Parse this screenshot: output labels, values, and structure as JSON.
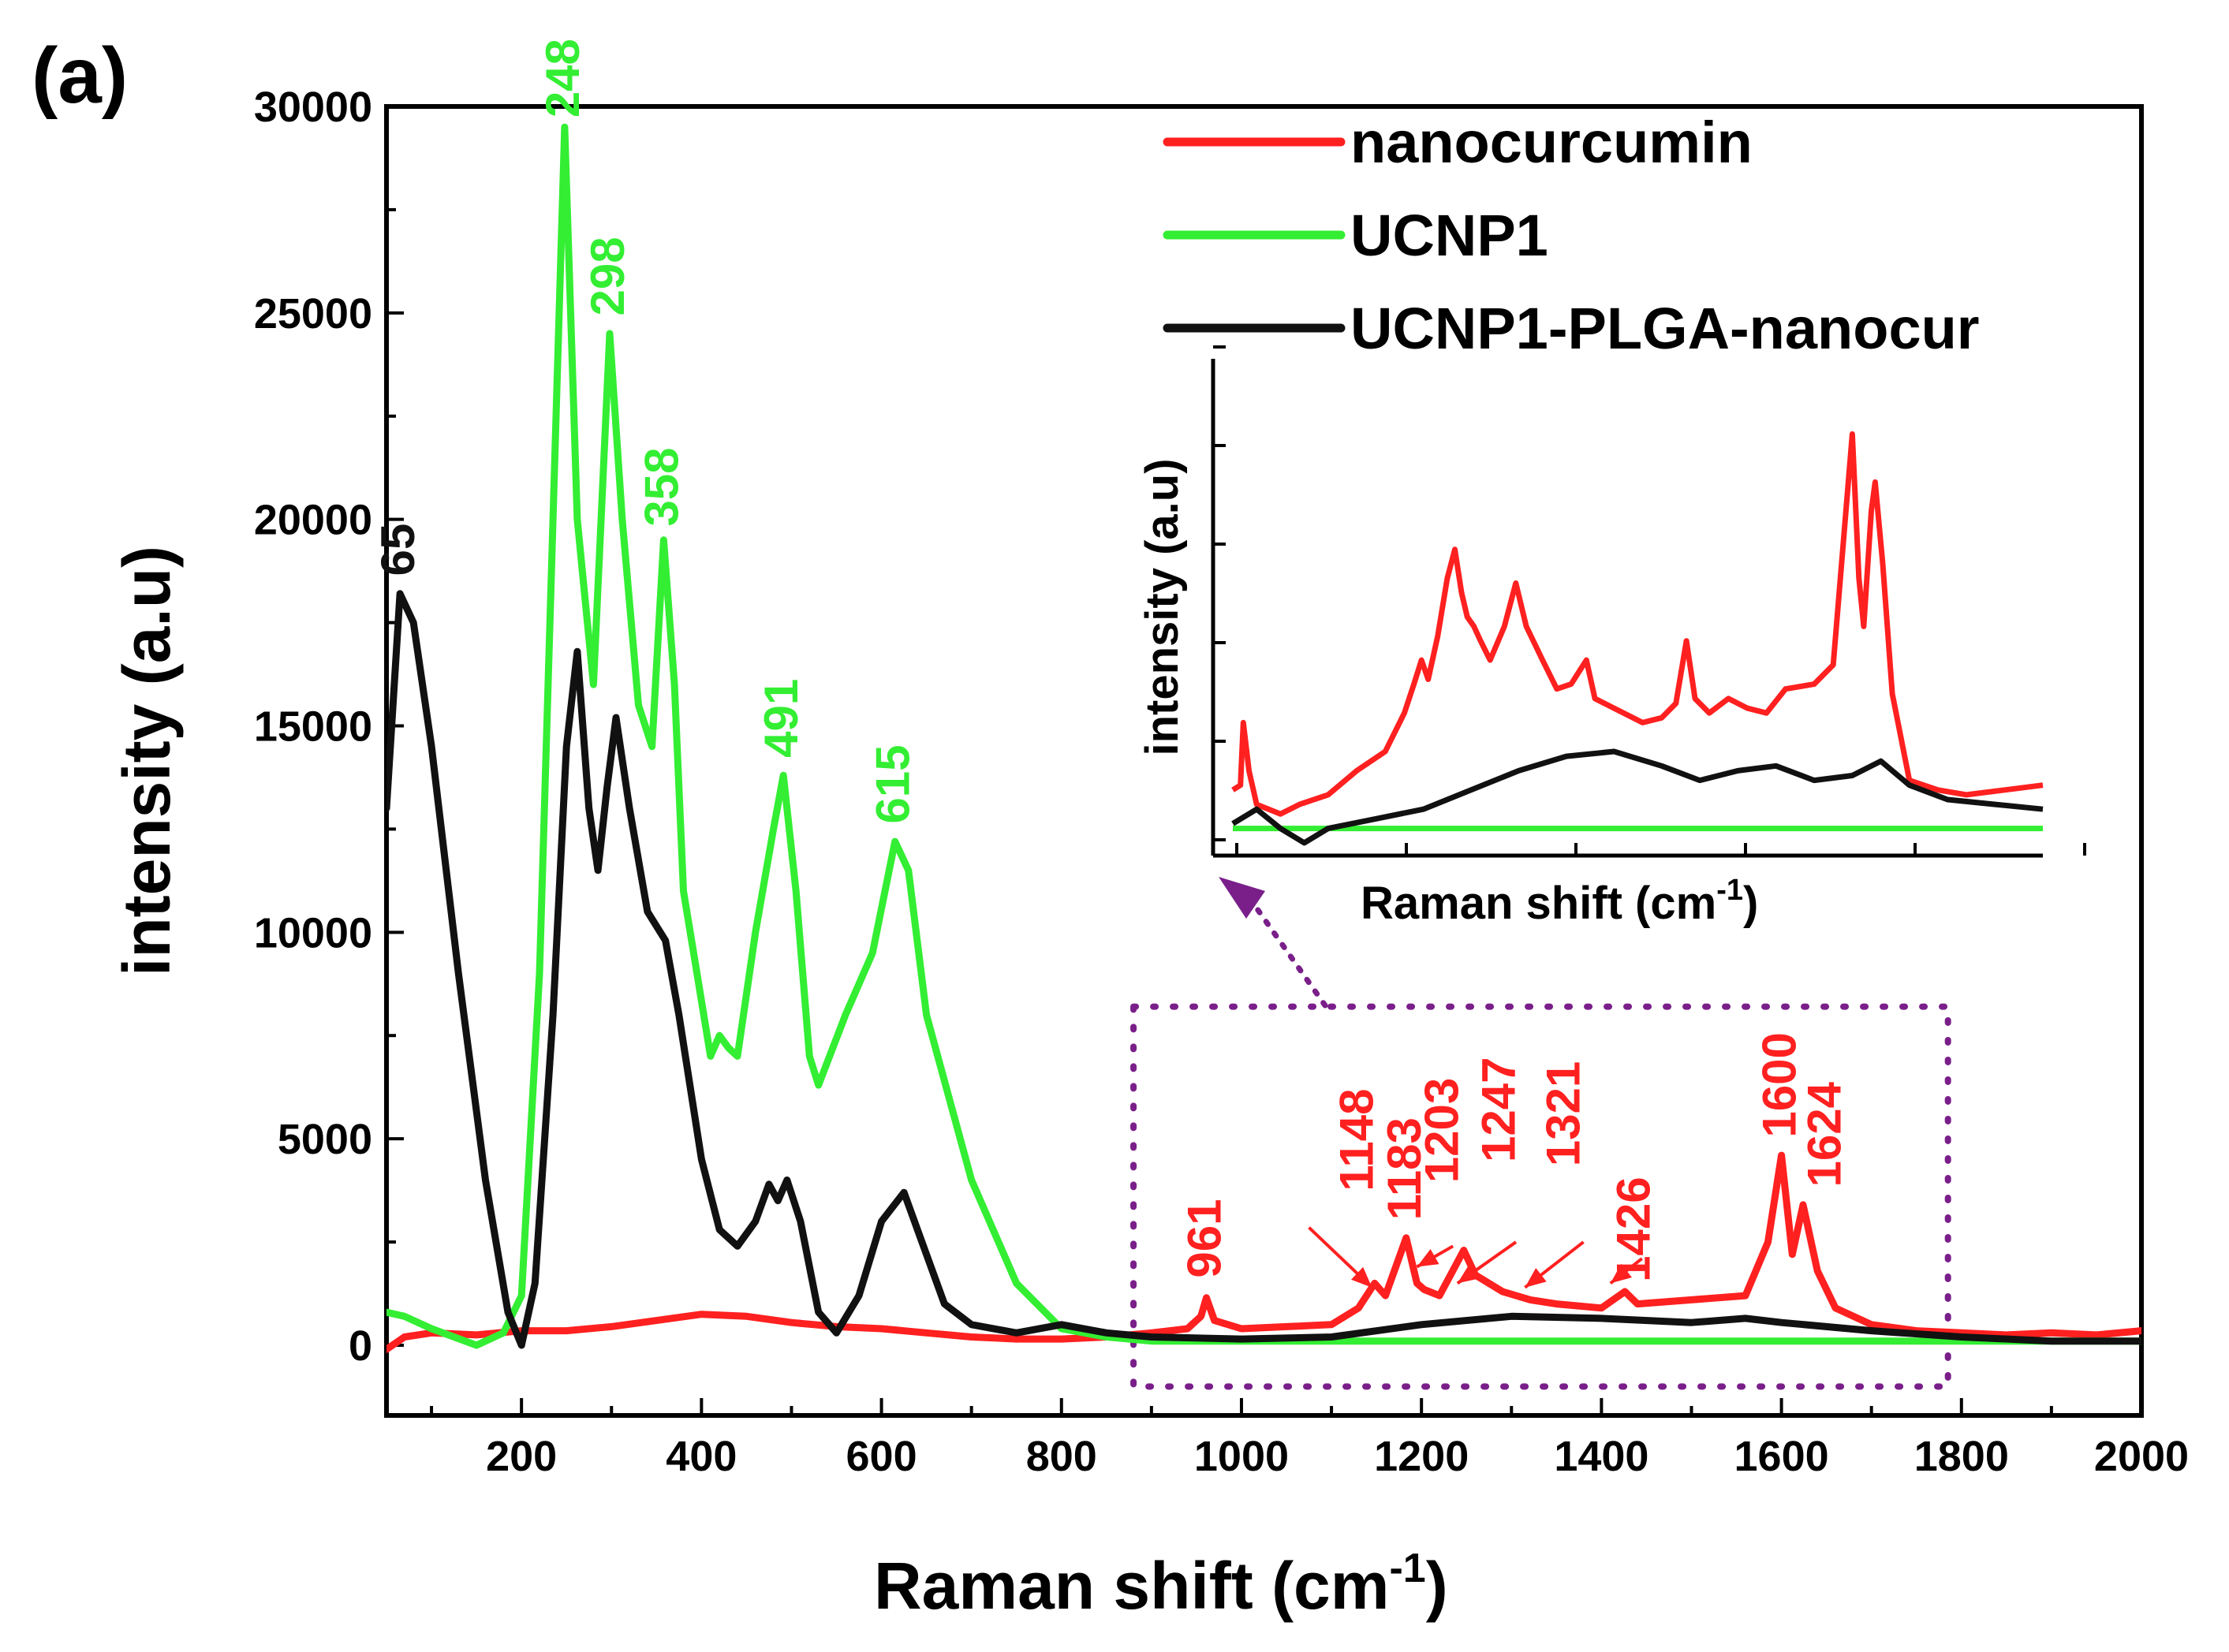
{
  "chart_data": {
    "type": "line",
    "panel_label": "(a)",
    "xlabel": "Raman shift (cm",
    "xlabel_sup": "-1",
    "xlabel_end": ")",
    "ylabel": "intensity (a.u)",
    "xlim": [
      50,
      2000
    ],
    "ylim": [
      -1700,
      30000
    ],
    "xticks": [
      200,
      400,
      600,
      800,
      1000,
      1200,
      1400,
      1600,
      1800,
      2000
    ],
    "yticks": [
      0,
      5000,
      10000,
      15000,
      20000,
      25000,
      30000
    ],
    "colors": {
      "red": "#ff2020",
      "green": "#33ee33",
      "black": "#111111",
      "purple": "#7a1f8a"
    },
    "series": [
      {
        "name": "nanocurcumin",
        "color": "#ff2020",
        "points": [
          [
            50,
            -100
          ],
          [
            70,
            200
          ],
          [
            100,
            300
          ],
          [
            150,
            250
          ],
          [
            200,
            350
          ],
          [
            250,
            350
          ],
          [
            300,
            450
          ],
          [
            350,
            600
          ],
          [
            400,
            750
          ],
          [
            450,
            700
          ],
          [
            500,
            550
          ],
          [
            550,
            450
          ],
          [
            600,
            400
          ],
          [
            650,
            300
          ],
          [
            700,
            200
          ],
          [
            750,
            150
          ],
          [
            800,
            150
          ],
          [
            850,
            200
          ],
          [
            900,
            300
          ],
          [
            940,
            400
          ],
          [
            955,
            700
          ],
          [
            961,
            1150
          ],
          [
            970,
            600
          ],
          [
            1000,
            400
          ],
          [
            1050,
            450
          ],
          [
            1100,
            500
          ],
          [
            1130,
            900
          ],
          [
            1148,
            1500
          ],
          [
            1160,
            1200
          ],
          [
            1183,
            2600
          ],
          [
            1195,
            1500
          ],
          [
            1203,
            1350
          ],
          [
            1220,
            1200
          ],
          [
            1247,
            2300
          ],
          [
            1260,
            1700
          ],
          [
            1290,
            1300
          ],
          [
            1321,
            1100
          ],
          [
            1350,
            1000
          ],
          [
            1400,
            900
          ],
          [
            1426,
            1300
          ],
          [
            1440,
            1000
          ],
          [
            1500,
            1100
          ],
          [
            1560,
            1200
          ],
          [
            1585,
            2500
          ],
          [
            1600,
            4600
          ],
          [
            1612,
            2200
          ],
          [
            1624,
            3400
          ],
          [
            1640,
            1800
          ],
          [
            1660,
            900
          ],
          [
            1700,
            500
          ],
          [
            1750,
            350
          ],
          [
            1800,
            300
          ],
          [
            1850,
            250
          ],
          [
            1900,
            300
          ],
          [
            1950,
            250
          ],
          [
            2000,
            350
          ]
        ]
      },
      {
        "name": "UCNP1",
        "color": "#33ee33",
        "points": [
          [
            50,
            800
          ],
          [
            70,
            700
          ],
          [
            100,
            400
          ],
          [
            150,
            0
          ],
          [
            180,
            300
          ],
          [
            200,
            1200
          ],
          [
            220,
            9000
          ],
          [
            235,
            20000
          ],
          [
            248,
            29500
          ],
          [
            262,
            20000
          ],
          [
            280,
            16000
          ],
          [
            298,
            24500
          ],
          [
            312,
            20000
          ],
          [
            330,
            15500
          ],
          [
            345,
            14500
          ],
          [
            358,
            19500
          ],
          [
            370,
            16000
          ],
          [
            380,
            11000
          ],
          [
            395,
            9000
          ],
          [
            410,
            7000
          ],
          [
            420,
            7500
          ],
          [
            430,
            7200
          ],
          [
            440,
            7000
          ],
          [
            460,
            10000
          ],
          [
            480,
            12500
          ],
          [
            491,
            13800
          ],
          [
            505,
            11000
          ],
          [
            520,
            7000
          ],
          [
            530,
            6300
          ],
          [
            560,
            8000
          ],
          [
            590,
            9500
          ],
          [
            615,
            12200
          ],
          [
            630,
            11500
          ],
          [
            650,
            8000
          ],
          [
            700,
            4000
          ],
          [
            750,
            1500
          ],
          [
            800,
            400
          ],
          [
            850,
            200
          ],
          [
            900,
            100
          ],
          [
            1000,
            100
          ],
          [
            1200,
            100
          ],
          [
            1400,
            100
          ],
          [
            1600,
            100
          ],
          [
            1800,
            100
          ],
          [
            2000,
            100
          ]
        ]
      },
      {
        "name": "UCNP1-PLGA-nanocur",
        "color": "#111111",
        "points": [
          [
            50,
            13000
          ],
          [
            65,
            18200
          ],
          [
            80,
            17500
          ],
          [
            100,
            14500
          ],
          [
            130,
            9000
          ],
          [
            160,
            4000
          ],
          [
            185,
            800
          ],
          [
            200,
            0
          ],
          [
            215,
            1500
          ],
          [
            235,
            8000
          ],
          [
            250,
            14500
          ],
          [
            262,
            16800
          ],
          [
            275,
            13000
          ],
          [
            285,
            11500
          ],
          [
            295,
            13500
          ],
          [
            305,
            15200
          ],
          [
            320,
            13000
          ],
          [
            340,
            10500
          ],
          [
            360,
            9800
          ],
          [
            375,
            8000
          ],
          [
            400,
            4500
          ],
          [
            420,
            2800
          ],
          [
            440,
            2400
          ],
          [
            460,
            3000
          ],
          [
            475,
            3900
          ],
          [
            485,
            3500
          ],
          [
            495,
            4000
          ],
          [
            510,
            3000
          ],
          [
            530,
            800
          ],
          [
            550,
            300
          ],
          [
            575,
            1200
          ],
          [
            600,
            3000
          ],
          [
            625,
            3700
          ],
          [
            645,
            2500
          ],
          [
            670,
            1000
          ],
          [
            700,
            500
          ],
          [
            750,
            300
          ],
          [
            800,
            500
          ],
          [
            850,
            300
          ],
          [
            900,
            200
          ],
          [
            1000,
            150
          ],
          [
            1100,
            200
          ],
          [
            1200,
            500
          ],
          [
            1300,
            700
          ],
          [
            1400,
            650
          ],
          [
            1500,
            550
          ],
          [
            1560,
            650
          ],
          [
            1600,
            550
          ],
          [
            1700,
            350
          ],
          [
            1800,
            200
          ],
          [
            1900,
            100
          ],
          [
            2000,
            100
          ]
        ]
      }
    ],
    "peak_labels": [
      {
        "text": "65",
        "x": 65,
        "y": 18400,
        "color": "#111111"
      },
      {
        "text": "248",
        "x": 248,
        "y": 29500,
        "color": "#33ee33"
      },
      {
        "text": "298",
        "x": 298,
        "y": 24700,
        "color": "#33ee33"
      },
      {
        "text": "358",
        "x": 358,
        "y": 19600,
        "color": "#33ee33"
      },
      {
        "text": "491",
        "x": 491,
        "y": 14000,
        "color": "#33ee33"
      },
      {
        "text": "615",
        "x": 615,
        "y": 12400,
        "color": "#33ee33"
      },
      {
        "text": "961",
        "x": 961,
        "y": 1400,
        "color": "#ff2020"
      },
      {
        "text": "1148",
        "x": 1130,
        "y": 3500,
        "color": "#ff2020"
      },
      {
        "text": "1183",
        "x": 1183,
        "y": 2800,
        "color": "#ff2020"
      },
      {
        "text": "1203",
        "x": 1225,
        "y": 3700,
        "color": "#ff2020"
      },
      {
        "text": "1247",
        "x": 1288,
        "y": 4200,
        "color": "#ff2020"
      },
      {
        "text": "1321",
        "x": 1360,
        "y": 4100,
        "color": "#ff2020"
      },
      {
        "text": "1426",
        "x": 1438,
        "y": 1300,
        "color": "#ff2020"
      },
      {
        "text": "1600",
        "x": 1600,
        "y": 4800,
        "color": "#ff2020"
      },
      {
        "text": "1624",
        "x": 1650,
        "y": 3600,
        "color": "#ff2020"
      }
    ],
    "arrows": [
      {
        "from": [
          1075,
          2850
        ],
        "to": [
          1145,
          1400
        ]
      },
      {
        "from": [
          1235,
          2400
        ],
        "to": [
          1195,
          1900
        ]
      },
      {
        "from": [
          1305,
          2500
        ],
        "to": [
          1240,
          1500
        ]
      },
      {
        "from": [
          1380,
          2500
        ],
        "to": [
          1315,
          1400
        ]
      },
      {
        "from": [
          1445,
          2100
        ],
        "to": [
          1410,
          1500
        ]
      }
    ],
    "zoom_box": {
      "x": [
        880,
        1785
      ],
      "y": [
        -1000,
        8200
      ]
    },
    "legend": {
      "position": "top-right",
      "entries": [
        {
          "label": "nanocurcumin",
          "color": "#ff2020"
        },
        {
          "label": "UCNP1",
          "color": "#33ee33"
        },
        {
          "label": "UCNP1-PLGA-nanocur",
          "color": "#111111"
        }
      ]
    },
    "inset": {
      "xlabel": "Raman shift (cm",
      "xlabel_sup": "-1",
      "xlabel_end": ")",
      "ylabel": "intensity (a.u)",
      "xlim": [
        950,
        1800
      ],
      "ylim": [
        0,
        10
      ],
      "series": [
        {
          "name": "nanocurcumin",
          "color": "#ff2020",
          "points": [
            [
              950,
              1.2
            ],
            [
              958,
              1.3
            ],
            [
              961,
              2.6
            ],
            [
              967,
              1.6
            ],
            [
              975,
              0.9
            ],
            [
              1000,
              0.7
            ],
            [
              1020,
              0.9
            ],
            [
              1050,
              1.1
            ],
            [
              1080,
              1.6
            ],
            [
              1110,
              2.0
            ],
            [
              1130,
              2.8
            ],
            [
              1140,
              3.4
            ],
            [
              1148,
              3.9
            ],
            [
              1155,
              3.5
            ],
            [
              1165,
              4.4
            ],
            [
              1175,
              5.6
            ],
            [
              1183,
              6.2
            ],
            [
              1190,
              5.3
            ],
            [
              1196,
              4.8
            ],
            [
              1203,
              4.6
            ],
            [
              1210,
              4.3
            ],
            [
              1220,
              3.9
            ],
            [
              1235,
              4.6
            ],
            [
              1247,
              5.5
            ],
            [
              1258,
              4.6
            ],
            [
              1275,
              3.9
            ],
            [
              1290,
              3.3
            ],
            [
              1305,
              3.4
            ],
            [
              1321,
              3.9
            ],
            [
              1330,
              3.1
            ],
            [
              1350,
              2.9
            ],
            [
              1380,
              2.6
            ],
            [
              1400,
              2.7
            ],
            [
              1415,
              3.0
            ],
            [
              1426,
              4.3
            ],
            [
              1435,
              3.1
            ],
            [
              1450,
              2.8
            ],
            [
              1470,
              3.1
            ],
            [
              1490,
              2.9
            ],
            [
              1510,
              2.8
            ],
            [
              1530,
              3.3
            ],
            [
              1560,
              3.4
            ],
            [
              1580,
              3.8
            ],
            [
              1590,
              6.2
            ],
            [
              1600,
              8.6
            ],
            [
              1607,
              5.6
            ],
            [
              1612,
              4.6
            ],
            [
              1620,
              7.0
            ],
            [
              1624,
              7.6
            ],
            [
              1632,
              5.9
            ],
            [
              1642,
              3.2
            ],
            [
              1660,
              1.4
            ],
            [
              1690,
              1.2
            ],
            [
              1720,
              1.1
            ],
            [
              1760,
              1.2
            ],
            [
              1800,
              1.3
            ]
          ]
        },
        {
          "name": "UCNP1",
          "color": "#33ee33",
          "points": [
            [
              950,
              0.4
            ],
            [
              1050,
              0.4
            ],
            [
              1200,
              0.4
            ],
            [
              1400,
              0.4
            ],
            [
              1600,
              0.4
            ],
            [
              1800,
              0.4
            ]
          ]
        },
        {
          "name": "UCNP1-PLGA-nanocur",
          "color": "#111111",
          "points": [
            [
              950,
              0.5
            ],
            [
              975,
              0.8
            ],
            [
              1000,
              0.4
            ],
            [
              1025,
              0.1
            ],
            [
              1050,
              0.4
            ],
            [
              1100,
              0.6
            ],
            [
              1150,
              0.8
            ],
            [
              1200,
              1.2
            ],
            [
              1250,
              1.6
            ],
            [
              1300,
              1.9
            ],
            [
              1350,
              2.0
            ],
            [
              1400,
              1.7
            ],
            [
              1440,
              1.4
            ],
            [
              1480,
              1.6
            ],
            [
              1520,
              1.7
            ],
            [
              1560,
              1.4
            ],
            [
              1600,
              1.5
            ],
            [
              1630,
              1.8
            ],
            [
              1660,
              1.3
            ],
            [
              1700,
              1.0
            ],
            [
              1750,
              0.9
            ],
            [
              1800,
              0.8
            ]
          ]
        }
      ]
    }
  }
}
